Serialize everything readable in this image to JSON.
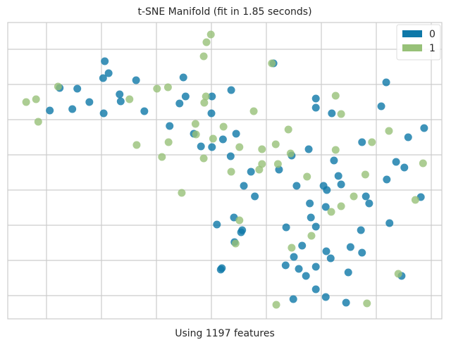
{
  "chart_data": {
    "type": "scatter",
    "title": "t-SNE Manifold (fit in 1.85 seconds)",
    "xlabel": "Using 1197 features",
    "xlim": [
      -37.05,
      41.92
    ],
    "ylim": [
      -36.6,
      47.6
    ],
    "xticks": [
      -30,
      -20,
      -10,
      0,
      10,
      20,
      30,
      40
    ],
    "yticks": [
      -30,
      -20,
      -10,
      0,
      10,
      20,
      30,
      40
    ],
    "grid": true,
    "legend": "upper right",
    "series": [
      {
        "name": "0",
        "color": "#0e78a8",
        "x": [
          -19.4,
          -18.7,
          -19.7,
          -27.6,
          -24.4,
          -13.7,
          -5.1,
          -16.7,
          -16.5,
          -22.2,
          -25.3,
          -29.4,
          -19.6,
          -12.2,
          -4.7,
          -5.8,
          0.1,
          3.6,
          11.3,
          0.0,
          -7.6,
          -3.2,
          -1.9,
          2.1,
          0.1,
          3.5,
          4.5,
          7.2,
          5.9,
          7.9,
          12.3,
          14.6,
          17.7,
          19.0,
          19.0,
          21.9,
          30.9,
          31.8,
          35.8,
          38.7,
          27.4,
          33.6,
          35.1,
          31.9,
          22.3,
          23.1,
          23.6,
          21.0,
          20.4,
          15.5,
          20.8,
          17.9,
          18.1,
          19.0,
          28.1,
          28.7,
          38.1,
          32.4,
          27.2,
          20.9,
          13.6,
          16.5,
          15.0,
          13.5,
          15.9,
          17.2,
          19.0,
          21.7,
          25.3,
          27.4,
          24.9,
          34.6,
          20.8,
          19.0,
          14.9,
          24.5,
          4.1,
          1.0,
          5.6,
          5.4,
          4.2,
          1.9,
          1.7
        ],
        "values": [
          36.6,
          33.2,
          31.8,
          29.0,
          28.8,
          31.2,
          32.0,
          27.2,
          25.2,
          25.0,
          23.0,
          22.6,
          21.8,
          22.4,
          26.6,
          24.6,
          26.6,
          28.4,
          36.0,
          21.8,
          18.2,
          16.0,
          12.4,
          14.4,
          12.2,
          9.6,
          16.0,
          5.2,
          1.2,
          -1.8,
          5.8,
          9.8,
          11.6,
          26.0,
          23.4,
          21.8,
          23.8,
          30.6,
          15.0,
          17.6,
          13.6,
          8.0,
          6.4,
          3.0,
          8.4,
          4.0,
          1.6,
          0.0,
          1.2,
          1.2,
          -4.8,
          -3.8,
          -7.8,
          -10.4,
          -1.8,
          -3.8,
          -2.0,
          -9.4,
          -11.4,
          -17.4,
          -10.6,
          -15.8,
          -19.0,
          -21.4,
          -22.4,
          -24.4,
          -21.8,
          -19.4,
          -16.2,
          -17.8,
          -23.4,
          -24.4,
          -30.4,
          -28.2,
          -31.0,
          -32.0,
          -7.8,
          -9.8,
          -11.4,
          -12.0,
          -14.8,
          -22.2,
          -22.6
        ]
      },
      {
        "name": "1",
        "color": "#97c178",
        "x": [
          -0.1,
          -0.9,
          -1.4,
          -27.9,
          -31.9,
          -33.7,
          -31.5,
          -14.9,
          -9.9,
          -7.9,
          -1.0,
          -1.3,
          7.7,
          2.2,
          -2.9,
          0.3,
          -2.8,
          -13.6,
          -7.8,
          -9.0,
          -1.4,
          14.0,
          5.1,
          9.2,
          11.7,
          22.6,
          23.6,
          32.3,
          29.2,
          22.6,
          14.4,
          12.1,
          8.7,
          9.2,
          3.6,
          -5.4,
          17.4,
          28.0,
          25.9,
          23.6,
          21.8,
          37.1,
          38.5,
          5.1,
          4.4,
          18.2,
          14.6,
          34.0,
          28.3,
          11.8,
          11.0
        ],
        "values": [
          44.2,
          42.0,
          38.0,
          29.4,
          25.8,
          25.0,
          19.4,
          25.8,
          28.8,
          29.2,
          26.6,
          24.8,
          22.4,
          18.0,
          18.8,
          14.6,
          15.8,
          12.8,
          13.6,
          9.4,
          9.0,
          17.2,
          12.2,
          11.6,
          13.0,
          26.8,
          21.6,
          16.8,
          13.6,
          11.4,
          10.4,
          7.4,
          5.8,
          7.4,
          5.2,
          -0.8,
          3.8,
          4.4,
          -1.8,
          -4.6,
          -6.2,
          -2.8,
          7.6,
          -8.6,
          -15.2,
          -13.0,
          -16.4,
          -23.8,
          -32.2,
          -32.6,
          36.0
        ]
      }
    ]
  }
}
